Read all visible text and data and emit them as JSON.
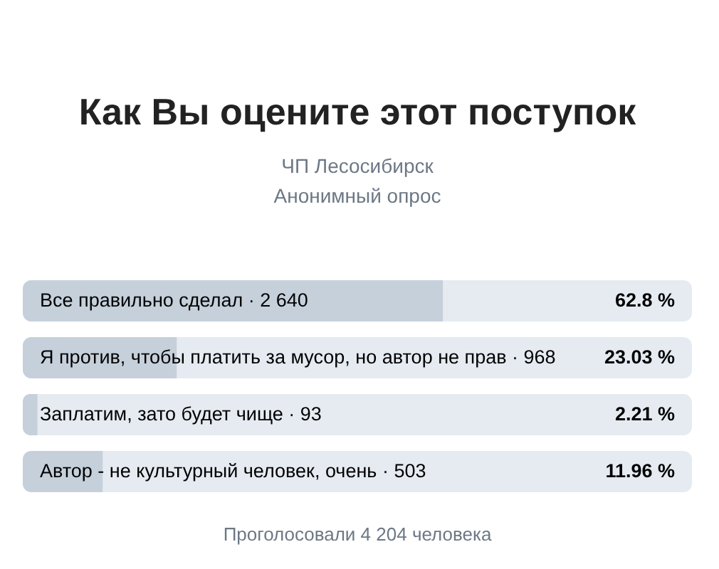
{
  "chart_data": {
    "type": "bar",
    "orientation": "horizontal",
    "title": "Как Вы оцените этот поступок",
    "subtitle": "ЧП Лесосибирск\nАнонимный опрос",
    "categories": [
      "Все правильно сделал · 2 640",
      "Я против, чтобы платить за мусор, но автор не прав · 968",
      "Заплатим, зато будет чище · 93",
      "Автор - не культурный человек, очень · 503"
    ],
    "values": [
      62.8,
      23.03,
      2.21,
      11.96
    ],
    "color": "#c5d0db",
    "value_labels": [
      "62.8 %",
      "23.03 %",
      "2.21 %",
      "11.96 %"
    ],
    "xlim": [
      0,
      100
    ],
    "tick_labels": "y",
    "annotations": [
      "Проголосовали 4 204 человека"
    ]
  }
}
